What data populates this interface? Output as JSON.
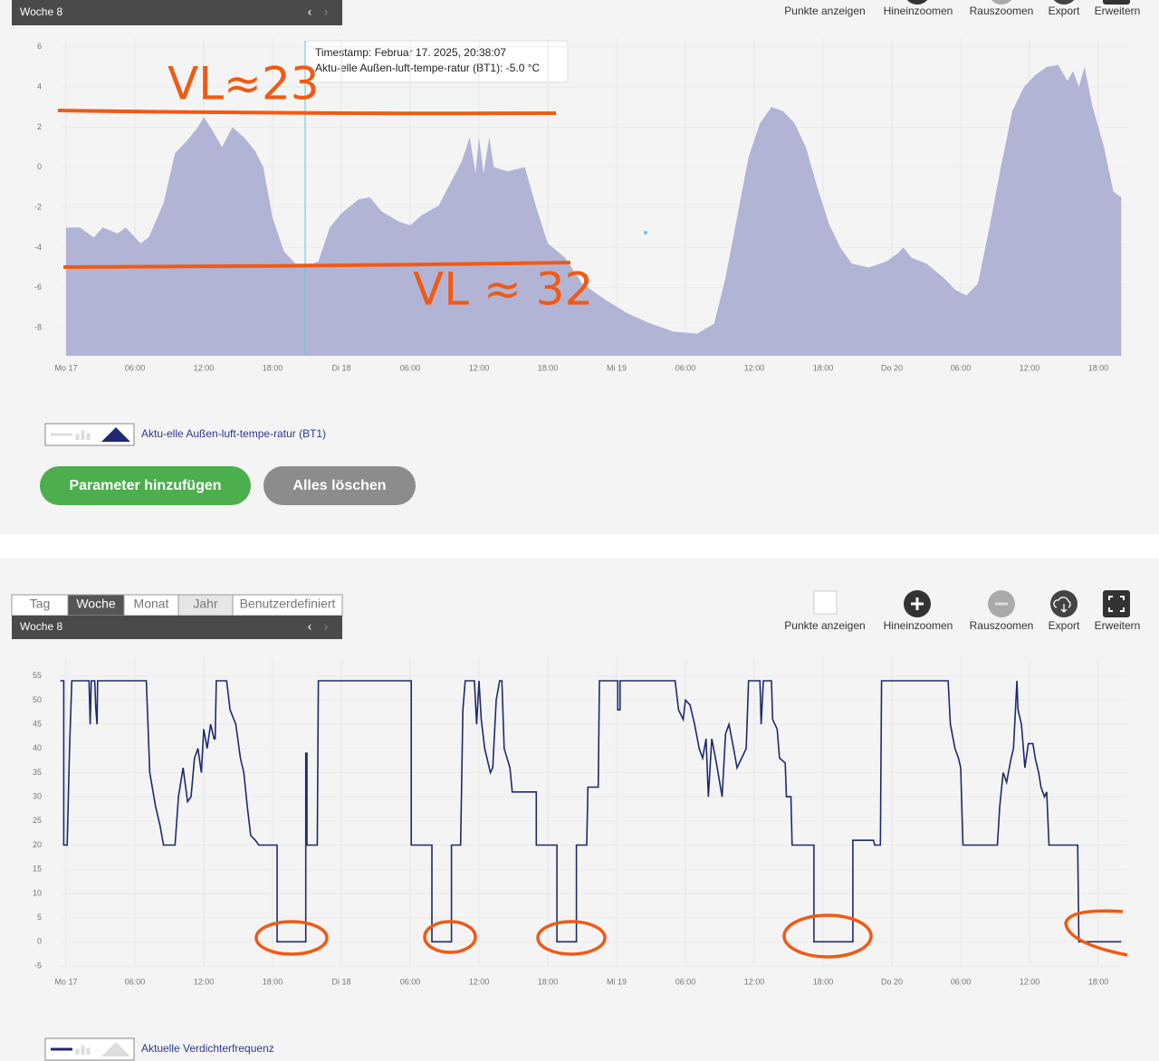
{
  "top_panel": {
    "period_bar": "Woche 8",
    "toolbar": [
      "Punkte anzeigen",
      "Hineinzoomen",
      "Rauszoomen",
      "Export",
      "Erweitern"
    ],
    "tooltip": [
      "Timestamp: Februar 17. 2025, 20:38:07",
      "Aktu-elle Außen-luft-tempe-ratur (BT1): -5.0 °C"
    ],
    "annotations": [
      "VL≈23",
      "VL ≈ 32"
    ],
    "buttons": [
      "Parameter hinzufügen",
      "Alles löschen"
    ]
  },
  "bottom_panel": {
    "tabs": [
      "Tag",
      "Woche",
      "Monat",
      "Jahr",
      "Benutzerdefiniert"
    ],
    "period_bar": "Woche 8",
    "toolbar": [
      "Punkte anzeigen",
      "Hineinzoomen",
      "Rauszoomen",
      "Export",
      "Erweitern"
    ]
  },
  "chart_data": [
    {
      "type": "area",
      "grid": true,
      "xlim": [
        -1,
        93
      ],
      "ylim": [
        -9.4,
        6.4
      ],
      "yticks": [
        -8,
        -6,
        -4,
        -2,
        0,
        2,
        4,
        6
      ],
      "xticks": [
        {
          "value": 0,
          "label": "Mo 17"
        },
        {
          "value": 6,
          "label": "06:00"
        },
        {
          "value": 12,
          "label": "12:00"
        },
        {
          "value": 18,
          "label": "18:00"
        },
        {
          "value": 24,
          "label": "Di 18"
        },
        {
          "value": 30,
          "label": "06:00"
        },
        {
          "value": 36,
          "label": "12:00"
        },
        {
          "value": 42,
          "label": "18:00"
        },
        {
          "value": 48,
          "label": "Mi 19"
        },
        {
          "value": 54,
          "label": "06:00"
        },
        {
          "value": 60,
          "label": "12:00"
        },
        {
          "value": 66,
          "label": "18:00"
        },
        {
          "value": 72,
          "label": "Do 20"
        },
        {
          "value": 78,
          "label": "06:00"
        },
        {
          "value": 84,
          "label": "12:00"
        },
        {
          "value": 90,
          "label": "18:00"
        }
      ],
      "x": [
        0,
        1.2,
        2.4,
        3.2,
        4.5,
        5.2,
        6.5,
        7.2,
        8.5,
        9.5,
        10.5,
        11.5,
        12,
        12.8,
        13.6,
        14.5,
        15.5,
        16.5,
        17.2,
        18,
        19,
        20,
        21.5,
        22,
        23,
        24,
        25.5,
        26.5,
        27.5,
        29,
        30,
        31,
        32.5,
        33.5,
        34.5,
        35.2,
        35.7,
        36,
        36.4,
        36.9,
        37.3,
        38.5,
        40,
        41,
        42,
        43.5,
        45,
        47,
        49,
        51,
        53,
        55,
        56.5,
        57.5,
        58.5,
        59.5,
        60.5,
        61.5,
        62.5,
        63.5,
        64.5,
        65.5,
        66.5,
        67.5,
        68.5,
        70,
        71.5,
        72.5,
        73,
        73.7,
        75,
        76.5,
        77.5,
        78.5,
        79.5,
        80.5,
        81.5,
        82.5,
        83.5,
        84.5,
        85.5,
        86.5,
        87.3,
        87.8,
        88.3,
        88.8,
        89.5,
        90.5,
        91.3,
        92
      ],
      "series": [
        {
          "name": "Aktu-elle Außen-luft-tempe-ratur (BT1)",
          "color": "#b2b4d6",
          "values": [
            -3,
            -3,
            -3.5,
            -3,
            -3.3,
            -3,
            -3.8,
            -3.5,
            -1.8,
            0.7,
            1.3,
            2,
            2.5,
            1.8,
            1,
            2,
            1.5,
            0.8,
            0,
            -2.5,
            -4.2,
            -4.8,
            -4.8,
            -4.7,
            -3,
            -2.3,
            -1.6,
            -1.5,
            -2.2,
            -2.7,
            -2.9,
            -2.4,
            -1.9,
            -0.8,
            0.3,
            1.5,
            -0.3,
            1.5,
            -0.3,
            1.5,
            0,
            -0.2,
            0,
            -2,
            -3.8,
            -4.5,
            -5.8,
            -6.6,
            -7.3,
            -7.8,
            -8.2,
            -8.3,
            -7.8,
            -5.5,
            -2.5,
            0.5,
            2.2,
            3,
            2.8,
            2.2,
            1,
            -1,
            -2.8,
            -4,
            -4.8,
            -5,
            -4.7,
            -4.3,
            -4,
            -4.5,
            -4.8,
            -5.5,
            -6.1,
            -6.4,
            -5.8,
            -3,
            0,
            2.8,
            4,
            4.6,
            5,
            5.1,
            4.3,
            4.8,
            4,
            5,
            3,
            1,
            -1.2,
            -1.5
          ]
        }
      ]
    },
    {
      "type": "line",
      "grid": true,
      "xlim": [
        -1,
        93
      ],
      "ylim": [
        -5,
        58.5
      ],
      "yticks": [
        -5,
        0,
        5,
        10,
        15,
        20,
        25,
        30,
        35,
        40,
        45,
        50,
        55
      ],
      "xticks": [
        {
          "value": 0,
          "label": "Mo 17"
        },
        {
          "value": 6,
          "label": "06:00"
        },
        {
          "value": 12,
          "label": "12:00"
        },
        {
          "value": 18,
          "label": "18:00"
        },
        {
          "value": 24,
          "label": "Di 18"
        },
        {
          "value": 30,
          "label": "06:00"
        },
        {
          "value": 36,
          "label": "12:00"
        },
        {
          "value": 42,
          "label": "18:00"
        },
        {
          "value": 48,
          "label": "Mi 19"
        },
        {
          "value": 54,
          "label": "06:00"
        },
        {
          "value": 60,
          "label": "12:00"
        },
        {
          "value": 66,
          "label": "18:00"
        },
        {
          "value": 72,
          "label": "Do 20"
        },
        {
          "value": 78,
          "label": "06:00"
        },
        {
          "value": 84,
          "label": "12:00"
        },
        {
          "value": 90,
          "label": "18:00"
        }
      ],
      "x": [
        -0.5,
        -0.2,
        -0.2,
        0.1,
        0.3,
        0.5,
        2.0,
        2.1,
        2.2,
        2.5,
        2.6,
        2.7,
        2.75,
        7.0,
        7.3,
        7.8,
        8.2,
        8.5,
        9.5,
        9.8,
        10.2,
        10.6,
        10.9,
        11.2,
        11.5,
        11.8,
        12.0,
        12.3,
        12.6,
        12.9,
        13.0,
        13.1,
        14.0,
        14.3,
        14.8,
        15.2,
        15.5,
        15.8,
        16.1,
        16.5,
        16.8,
        18.4,
        18.4,
        20.9,
        20.9,
        21.0,
        21.0,
        21.9,
        22.0,
        30.1,
        30.1,
        31.9,
        31.9,
        33.6,
        33.6,
        34.4,
        34.6,
        34.8,
        35.6,
        35.8,
        36.0,
        36.2,
        36.5,
        37.0,
        37.2,
        37.5,
        37.8,
        38.0,
        38.2,
        38.7,
        38.9,
        41.0,
        41.0,
        42.8,
        42.8,
        44.5,
        44.5,
        45.4,
        45.5,
        46.4,
        46.5,
        48.1,
        48.1,
        48.3,
        48.3,
        53.1,
        53.4,
        53.8,
        54.0,
        54.4,
        54.8,
        55.2,
        55.5,
        55.8,
        56.0,
        56.3,
        56.7,
        57.2,
        57.5,
        57.8,
        58.2,
        58.5,
        58.9,
        59.3,
        59.5,
        60.5,
        60.6,
        60.8,
        61.5,
        61.6,
        62.0,
        62.2,
        62.7,
        62.8,
        63.2,
        63.3,
        65.2,
        65.2,
        68.6,
        68.6,
        70.4,
        70.5,
        71.0,
        71.1,
        76.9,
        77.1,
        77.5,
        77.8,
        78.0,
        78.2,
        81.2,
        81.4,
        81.7,
        82.0,
        82.4,
        82.6,
        82.9,
        83.0,
        83.3,
        83.6,
        83.9,
        84.3,
        84.5,
        84.8,
        85.0,
        85.3,
        85.5,
        85.7,
        88.2,
        88.3,
        92.0
      ],
      "series": [
        {
          "name": "Aktuelle Verdichterfrequenz",
          "color": "#1f2a6e",
          "values": [
            54,
            54,
            20,
            20,
            40,
            54,
            54,
            45,
            54,
            54,
            48,
            45,
            54,
            54,
            35,
            28,
            24,
            20,
            20,
            30,
            36,
            29,
            30,
            38,
            40,
            35,
            44,
            40,
            45,
            42,
            42,
            54,
            54,
            48,
            45,
            38,
            35,
            28,
            22,
            21,
            20,
            20,
            0,
            0,
            39,
            39,
            20,
            20,
            54,
            54,
            20,
            20,
            0,
            0,
            20,
            20,
            48,
            54,
            54,
            45,
            54,
            46,
            40,
            35,
            36,
            50,
            54,
            54,
            40,
            36,
            31,
            31,
            20,
            20,
            0,
            0,
            20,
            20,
            32,
            32,
            54,
            54,
            48,
            48,
            54,
            54,
            48,
            46,
            50,
            49,
            45,
            40,
            38,
            42,
            30,
            42,
            37,
            30,
            43,
            45,
            40,
            36,
            38,
            40,
            54,
            54,
            45,
            54,
            54,
            46,
            44,
            38,
            37,
            30,
            30,
            20,
            20,
            0,
            0,
            21,
            21,
            20,
            20,
            54,
            54,
            45,
            40,
            38,
            36,
            20,
            20,
            28,
            35,
            33,
            38,
            40,
            54,
            48,
            45,
            36,
            41,
            41,
            38,
            35,
            32,
            30,
            31,
            20,
            20,
            0,
            0
          ]
        }
      ]
    }
  ]
}
